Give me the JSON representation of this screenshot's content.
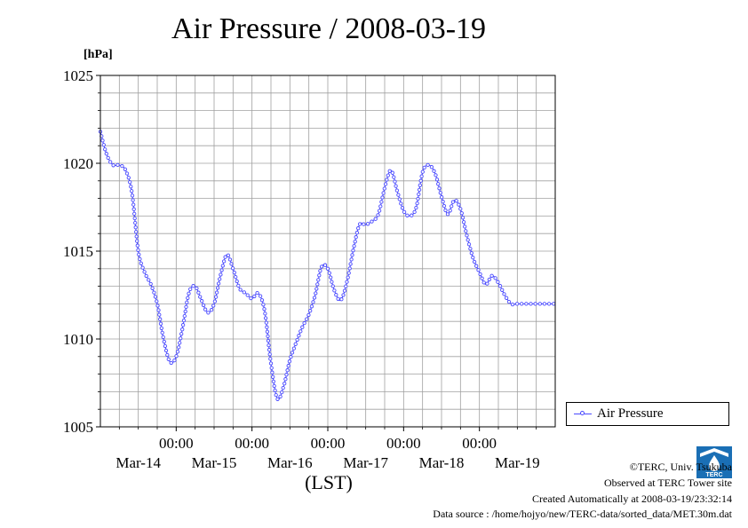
{
  "title": "Air Pressure / 2008-03-19",
  "unit": "[hPa]",
  "xlabel": "(LST)",
  "legend": {
    "label": "Air Pressure"
  },
  "footer": {
    "copyright": "©TERC, Univ. Tsukuba",
    "site": "Observed at TERC Tower site",
    "created": "Created Automatically at 2008-03-19/23:32:14",
    "source": "Data source : /home/hojyo/new/TERC-data/sorted_data/MET.30m.dat"
  },
  "logo_text": "TERC",
  "colors": {
    "series": "#4a4aff",
    "grid": "#a0a0a0",
    "background": "#ffffff"
  },
  "chart_data": {
    "type": "line",
    "title": "Air Pressure / 2008-03-19",
    "ylabel": "[hPa]",
    "xlabel": "(LST)",
    "ylim": [
      1005,
      1025
    ],
    "yticks": [
      1005,
      1010,
      1015,
      1020,
      1025
    ],
    "xlim": [
      "2008-03-14 00:00",
      "2008-03-20 00:00"
    ],
    "xticks": [
      {
        "top": "",
        "bottom": "Mar-14"
      },
      {
        "top": "00:00",
        "bottom": "Mar-15"
      },
      {
        "top": "00:00",
        "bottom": "Mar-16"
      },
      {
        "top": "00:00",
        "bottom": "Mar-17"
      },
      {
        "top": "00:00",
        "bottom": "Mar-18"
      },
      {
        "top": "00:00",
        "bottom": "Mar-19"
      }
    ],
    "grid": true,
    "legend_position": "right",
    "series": [
      {
        "name": "Air Pressure",
        "x": [
          "2008-03-14 00:00",
          "2008-03-14 02:00",
          "2008-03-14 04:00",
          "2008-03-14 06:00",
          "2008-03-14 08:00",
          "2008-03-14 10:00",
          "2008-03-14 12:00",
          "2008-03-14 14:00",
          "2008-03-14 16:00",
          "2008-03-14 18:00",
          "2008-03-14 20:00",
          "2008-03-14 22:00",
          "2008-03-15 00:00",
          "2008-03-15 02:00",
          "2008-03-15 04:00",
          "2008-03-15 06:00",
          "2008-03-15 08:00",
          "2008-03-15 10:00",
          "2008-03-15 12:00",
          "2008-03-15 14:00",
          "2008-03-15 16:00",
          "2008-03-15 18:00",
          "2008-03-15 20:00",
          "2008-03-15 22:00",
          "2008-03-16 00:00",
          "2008-03-16 02:00",
          "2008-03-16 04:00",
          "2008-03-16 06:00",
          "2008-03-16 08:00",
          "2008-03-16 10:00",
          "2008-03-16 12:00",
          "2008-03-16 14:00",
          "2008-03-16 16:00",
          "2008-03-16 18:00",
          "2008-03-16 20:00",
          "2008-03-16 22:00",
          "2008-03-17 00:00",
          "2008-03-17 02:00",
          "2008-03-17 04:00",
          "2008-03-17 06:00",
          "2008-03-17 08:00",
          "2008-03-17 10:00",
          "2008-03-17 12:00",
          "2008-03-17 14:00",
          "2008-03-17 16:00",
          "2008-03-17 18:00",
          "2008-03-17 20:00",
          "2008-03-17 22:00",
          "2008-03-18 00:00",
          "2008-03-18 02:00",
          "2008-03-18 04:00",
          "2008-03-18 06:00",
          "2008-03-18 08:00",
          "2008-03-18 10:00",
          "2008-03-18 12:00",
          "2008-03-18 14:00",
          "2008-03-18 16:00",
          "2008-03-18 18:00",
          "2008-03-18 20:00",
          "2008-03-18 22:00",
          "2008-03-19 00:00",
          "2008-03-19 02:00",
          "2008-03-19 04:00",
          "2008-03-19 06:00",
          "2008-03-19 08:00",
          "2008-03-19 10:00",
          "2008-03-19 12:00",
          "2008-03-19 14:00",
          "2008-03-19 16:00",
          "2008-03-19 18:00",
          "2008-03-19 20:00",
          "2008-03-19 22:00",
          "2008-03-19 23:30"
        ],
        "values": [
          1021.8,
          1020.5,
          1019.9,
          1019.9,
          1019.6,
          1018.3,
          1015.0,
          1013.8,
          1013.1,
          1012.0,
          1010.0,
          1008.7,
          1009.0,
          1010.6,
          1012.6,
          1013.0,
          1012.2,
          1011.5,
          1012.0,
          1013.6,
          1014.8,
          1014.0,
          1012.9,
          1012.6,
          1012.3,
          1012.6,
          1011.6,
          1008.6,
          1006.6,
          1007.3,
          1008.8,
          1009.8,
          1010.7,
          1011.4,
          1012.5,
          1014.1,
          1014.0,
          1012.8,
          1012.2,
          1013.2,
          1015.0,
          1016.5,
          1016.5,
          1016.7,
          1017.1,
          1018.6,
          1019.6,
          1018.4,
          1017.3,
          1017.0,
          1017.5,
          1019.5,
          1019.9,
          1019.4,
          1018.1,
          1017.1,
          1017.9,
          1017.4,
          1015.9,
          1014.6,
          1013.8,
          1013.1,
          1013.6,
          1013.2,
          1012.5,
          1012.0,
          1012.0,
          1012.0,
          1012.0,
          1012.0,
          1012.0,
          1012.0,
          1012.0
        ]
      }
    ]
  }
}
